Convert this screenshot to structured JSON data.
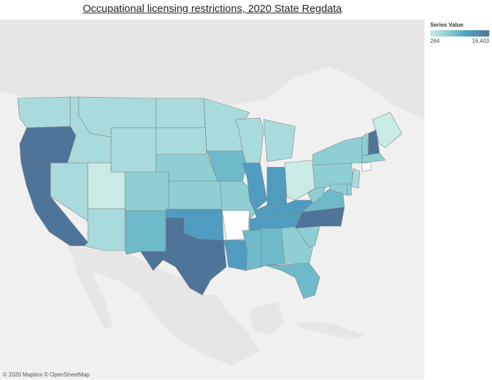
{
  "title": "Occupational licensing restrictions, 2020 State Regdata",
  "legend": {
    "title": "Series Value",
    "min_label": "264",
    "max_label": "16,403"
  },
  "credit": "© 2020 Mapbox © OpenStreetMap",
  "colors": {
    "c1": "#c8ebe6",
    "c2": "#a9dbdc",
    "c3": "#8ecfd3",
    "c4": "#6ebacb",
    "c5": "#4f9cc0",
    "c6": "#4e7499",
    "land": "#e6e6e6",
    "water": "#f0f0f0",
    "nodata": "#ffffff"
  },
  "states": [
    {
      "abbr": "WA",
      "tone": "c2"
    },
    {
      "abbr": "OR",
      "tone": "c6"
    },
    {
      "abbr": "CA",
      "tone": "c6"
    },
    {
      "abbr": "NV",
      "tone": "c2"
    },
    {
      "abbr": "ID",
      "tone": "c2"
    },
    {
      "abbr": "MT",
      "tone": "c2"
    },
    {
      "abbr": "WY",
      "tone": "c2"
    },
    {
      "abbr": "UT",
      "tone": "c1"
    },
    {
      "abbr": "AZ",
      "tone": "c2"
    },
    {
      "abbr": "CO",
      "tone": "c3"
    },
    {
      "abbr": "NM",
      "tone": "c4"
    },
    {
      "abbr": "ND",
      "tone": "c2"
    },
    {
      "abbr": "SD",
      "tone": "c2"
    },
    {
      "abbr": "NE",
      "tone": "c3"
    },
    {
      "abbr": "KS",
      "tone": "c3"
    },
    {
      "abbr": "OK",
      "tone": "c5"
    },
    {
      "abbr": "TX",
      "tone": "c6"
    },
    {
      "abbr": "MN",
      "tone": "c2"
    },
    {
      "abbr": "IA",
      "tone": "c4"
    },
    {
      "abbr": "MO",
      "tone": "c3"
    },
    {
      "abbr": "AR",
      "tone": "nodata"
    },
    {
      "abbr": "LA",
      "tone": "c5"
    },
    {
      "abbr": "WI",
      "tone": "c2"
    },
    {
      "abbr": "IL",
      "tone": "c5"
    },
    {
      "abbr": "MI",
      "tone": "c2"
    },
    {
      "abbr": "IN",
      "tone": "c5"
    },
    {
      "abbr": "OH",
      "tone": "c1"
    },
    {
      "abbr": "KY",
      "tone": "c5"
    },
    {
      "abbr": "TN",
      "tone": "c5"
    },
    {
      "abbr": "MS",
      "tone": "c4"
    },
    {
      "abbr": "AL",
      "tone": "c4"
    },
    {
      "abbr": "GA",
      "tone": "c3"
    },
    {
      "abbr": "FL",
      "tone": "c4"
    },
    {
      "abbr": "SC",
      "tone": "c3"
    },
    {
      "abbr": "NC",
      "tone": "c6"
    },
    {
      "abbr": "VA",
      "tone": "c4"
    },
    {
      "abbr": "WV",
      "tone": "c3"
    },
    {
      "abbr": "PA",
      "tone": "c3"
    },
    {
      "abbr": "NY",
      "tone": "c3"
    },
    {
      "abbr": "ME",
      "tone": "c1"
    },
    {
      "abbr": "VT",
      "tone": "c3"
    },
    {
      "abbr": "NH",
      "tone": "c6"
    },
    {
      "abbr": "MA",
      "tone": "c3"
    },
    {
      "abbr": "CT",
      "tone": "nodata"
    },
    {
      "abbr": "NJ",
      "tone": "c2"
    },
    {
      "abbr": "DE",
      "tone": "c3"
    },
    {
      "abbr": "MD",
      "tone": "c3"
    }
  ]
}
